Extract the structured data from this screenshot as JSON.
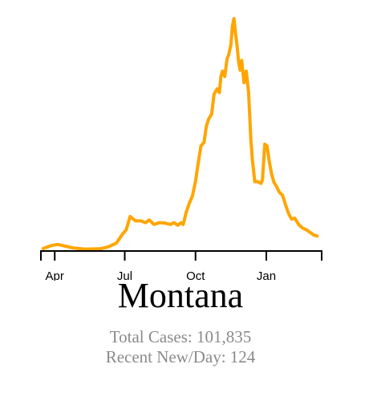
{
  "state_name": "Montana",
  "stats": {
    "total_label": "Total Cases: 101,835",
    "recent_label": "Recent New/Day: 124"
  },
  "colors": {
    "line": "#FFA500",
    "axis": "#000000"
  },
  "chart_data": {
    "type": "line",
    "title": "",
    "xlabel": "",
    "ylabel": "",
    "x_tick_labels": [
      "Apr",
      "Jul",
      "Oct",
      "Jan"
    ],
    "x_ticks": [
      "2020-04-01",
      "2020-07-01",
      "2020-10-01",
      "2021-01-01"
    ],
    "xlim": [
      "2020-03-13",
      "2021-03-15"
    ],
    "ylim": [
      0,
      1300
    ],
    "grid": false,
    "series": [
      {
        "x": [
          "2020-03-17",
          "2020-03-28",
          "2020-04-05",
          "2020-04-15",
          "2020-04-25",
          "2020-05-10",
          "2020-05-30",
          "2020-06-10",
          "2020-06-20",
          "2020-06-28",
          "2020-07-03",
          "2020-07-08",
          "2020-07-12",
          "2020-07-15",
          "2020-07-22",
          "2020-07-28",
          "2020-08-02",
          "2020-08-08",
          "2020-08-15",
          "2020-08-22",
          "2020-08-29",
          "2020-09-03",
          "2020-09-08",
          "2020-09-12",
          "2020-09-15",
          "2020-09-19",
          "2020-09-23",
          "2020-09-27",
          "2020-10-01",
          "2020-10-04",
          "2020-10-08",
          "2020-10-12",
          "2020-10-15",
          "2020-10-18",
          "2020-10-22",
          "2020-10-25",
          "2020-10-29",
          "2020-11-01",
          "2020-11-03",
          "2020-11-05",
          "2020-11-08",
          "2020-11-11",
          "2020-11-13",
          "2020-11-16",
          "2020-11-18",
          "2020-11-20",
          "2020-11-22",
          "2020-11-24",
          "2020-11-26",
          "2020-11-28",
          "2020-11-30",
          "2020-12-03",
          "2020-12-06",
          "2020-12-09",
          "2020-12-12",
          "2020-12-14",
          "2020-12-17",
          "2020-12-21",
          "2020-12-25",
          "2020-12-27",
          "2020-12-30",
          "2021-01-02",
          "2021-01-05",
          "2021-01-08",
          "2021-01-11",
          "2021-01-14",
          "2021-01-18",
          "2021-01-22",
          "2021-01-26",
          "2021-01-30",
          "2021-02-03",
          "2021-02-07",
          "2021-02-12",
          "2021-02-17",
          "2021-02-22",
          "2021-02-27",
          "2021-03-04",
          "2021-03-08"
        ],
        "y": [
          5,
          22,
          28,
          18,
          8,
          2,
          3,
          15,
          35,
          85,
          110,
          185,
          170,
          160,
          160,
          150,
          165,
          140,
          150,
          148,
          140,
          150,
          135,
          150,
          140,
          210,
          260,
          300,
          380,
          470,
          580,
          600,
          690,
          730,
          760,
          870,
          900,
          880,
          970,
          1000,
          970,
          1070,
          1090,
          1150,
          1255,
          1295,
          1210,
          1145,
          1050,
          1005,
          1060,
          935,
          1000,
          880,
          610,
          500,
          380,
          380,
          370,
          390,
          590,
          580,
          490,
          420,
          375,
          355,
          320,
          305,
          250,
          200,
          170,
          175,
          140,
          120,
          110,
          95,
          80,
          75
        ]
      }
    ]
  }
}
